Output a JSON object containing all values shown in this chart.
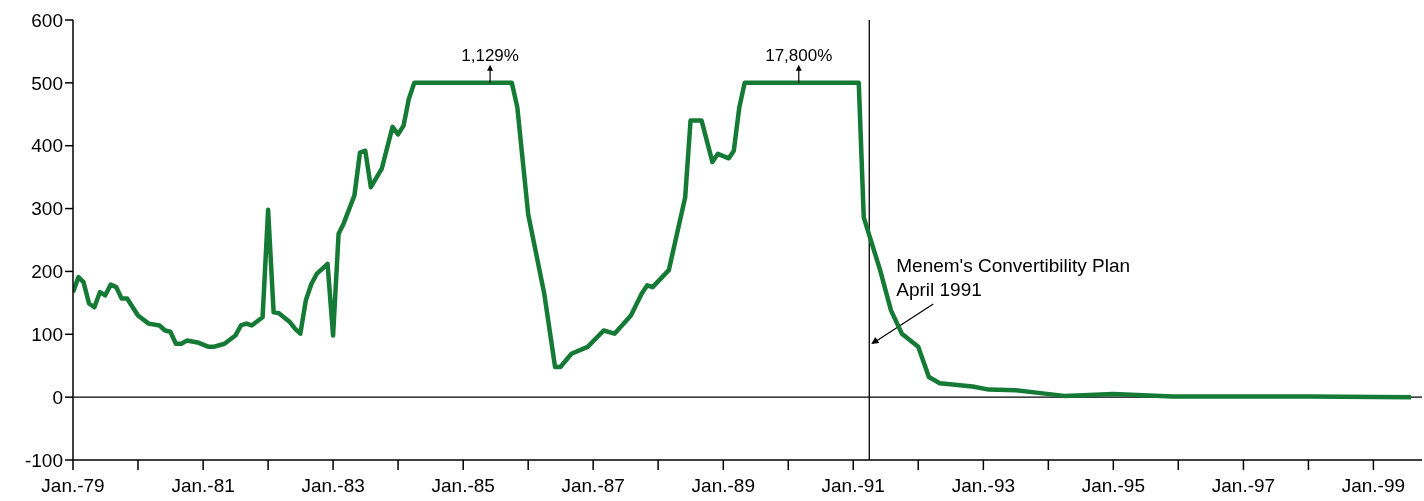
{
  "chart_data": {
    "type": "line",
    "x": [
      "1979-01",
      "1979-02",
      "1979-03",
      "1979-04",
      "1979-05",
      "1979-06",
      "1979-07",
      "1979-08",
      "1979-09",
      "1979-10",
      "1979-11",
      "1980-01",
      "1980-03",
      "1980-05",
      "1980-06",
      "1980-07",
      "1980-08",
      "1980-09",
      "1980-10",
      "1980-12",
      "1981-02",
      "1981-03",
      "1981-05",
      "1981-07",
      "1981-08",
      "1981-09",
      "1981-10",
      "1981-12",
      "1982-01",
      "1982-02",
      "1982-03",
      "1982-05",
      "1982-06",
      "1982-07",
      "1982-08",
      "1982-09",
      "1982-10",
      "1982-11",
      "1982-12",
      "1983-01",
      "1983-02",
      "1983-03",
      "1983-05",
      "1983-06",
      "1983-07",
      "1983-08",
      "1983-10",
      "1983-12",
      "1984-01",
      "1984-02",
      "1984-03",
      "1984-04",
      "1985-10",
      "1985-11",
      "1986-01",
      "1986-04",
      "1986-06",
      "1986-07",
      "1986-09",
      "1986-12",
      "1987-03",
      "1987-05",
      "1987-08",
      "1987-10",
      "1987-11",
      "1987-12",
      "1988-03",
      "1988-06",
      "1988-07",
      "1988-09",
      "1988-11",
      "1988-12",
      "1989-02",
      "1989-03",
      "1989-04",
      "1989-05",
      "1991-02",
      "1991-03",
      "1991-06",
      "1991-08",
      "1991-10",
      "1992-01",
      "1992-03",
      "1992-05",
      "1992-11",
      "1993-02",
      "1993-07",
      "1993-12",
      "1994-04",
      "1995-01",
      "1995-12",
      "1997-01",
      "1998-01",
      "1999-08"
    ],
    "series": [
      {
        "color": "#157a35",
        "values": [
          167,
          191,
          183,
          149,
          143,
          167,
          162,
          179,
          175,
          157,
          157,
          130,
          117,
          114,
          106,
          104,
          85,
          85,
          90,
          87,
          80,
          80,
          85,
          98,
          114,
          117,
          114,
          127,
          298,
          135,
          134,
          120,
          109,
          101,
          154,
          180,
          196,
          204,
          212,
          98,
          260,
          276,
          321,
          389,
          392,
          334,
          363,
          430,
          418,
          432,
          474,
          500,
          500,
          461,
          291,
          165,
          48,
          48,
          69,
          80,
          106,
          101,
          130,
          165,
          178,
          175,
          202,
          318,
          440,
          440,
          374,
          387,
          380,
          392,
          461,
          500,
          500,
          286,
          202,
          138,
          101,
          80,
          32,
          22,
          17,
          12,
          11,
          6,
          2,
          5,
          1,
          1,
          1,
          0
        ]
      }
    ],
    "xlim": [
      "1979-01",
      "1999-10"
    ],
    "xticks": [
      {
        "value": "1979-01",
        "label": "Jan.-79"
      },
      {
        "value": "1980-01",
        "label": null
      },
      {
        "value": "1981-01",
        "label": "Jan.-81"
      },
      {
        "value": "1982-01",
        "label": null
      },
      {
        "value": "1983-01",
        "label": "Jan.-83"
      },
      {
        "value": "1984-01",
        "label": null
      },
      {
        "value": "1985-01",
        "label": "Jan.-85"
      },
      {
        "value": "1986-01",
        "label": null
      },
      {
        "value": "1987-01",
        "label": "Jan.-87"
      },
      {
        "value": "1988-01",
        "label": null
      },
      {
        "value": "1989-01",
        "label": "Jan.-89"
      },
      {
        "value": "1990-01",
        "label": null
      },
      {
        "value": "1991-01",
        "label": "Jan.-91"
      },
      {
        "value": "1992-01",
        "label": null
      },
      {
        "value": "1993-01",
        "label": "Jan.-93"
      },
      {
        "value": "1994-01",
        "label": null
      },
      {
        "value": "1995-01",
        "label": "Jan.-95"
      },
      {
        "value": "1996-01",
        "label": null
      },
      {
        "value": "1997-01",
        "label": "Jan.-97"
      },
      {
        "value": "1998-01",
        "label": null
      },
      {
        "value": "1999-01",
        "label": "Jan.-99"
      }
    ],
    "ylim": [
      -100,
      600
    ],
    "yticks": [
      -100,
      0,
      100,
      200,
      300,
      400,
      500,
      600
    ],
    "grid": false,
    "marker": "none",
    "line_style": "solid",
    "ref_lines": [
      {
        "axis": "y",
        "value": 0,
        "color": "#000000"
      },
      {
        "axis": "x",
        "value": "1991-04",
        "label": "Menem's Convertibility Plan\nApril 1991",
        "color": "#000000"
      }
    ],
    "annotations": [
      {
        "text": "1,129%",
        "x": "1985-06",
        "y": 500
      },
      {
        "text": "17,800%",
        "x": "1990-03",
        "y": 500
      }
    ]
  }
}
